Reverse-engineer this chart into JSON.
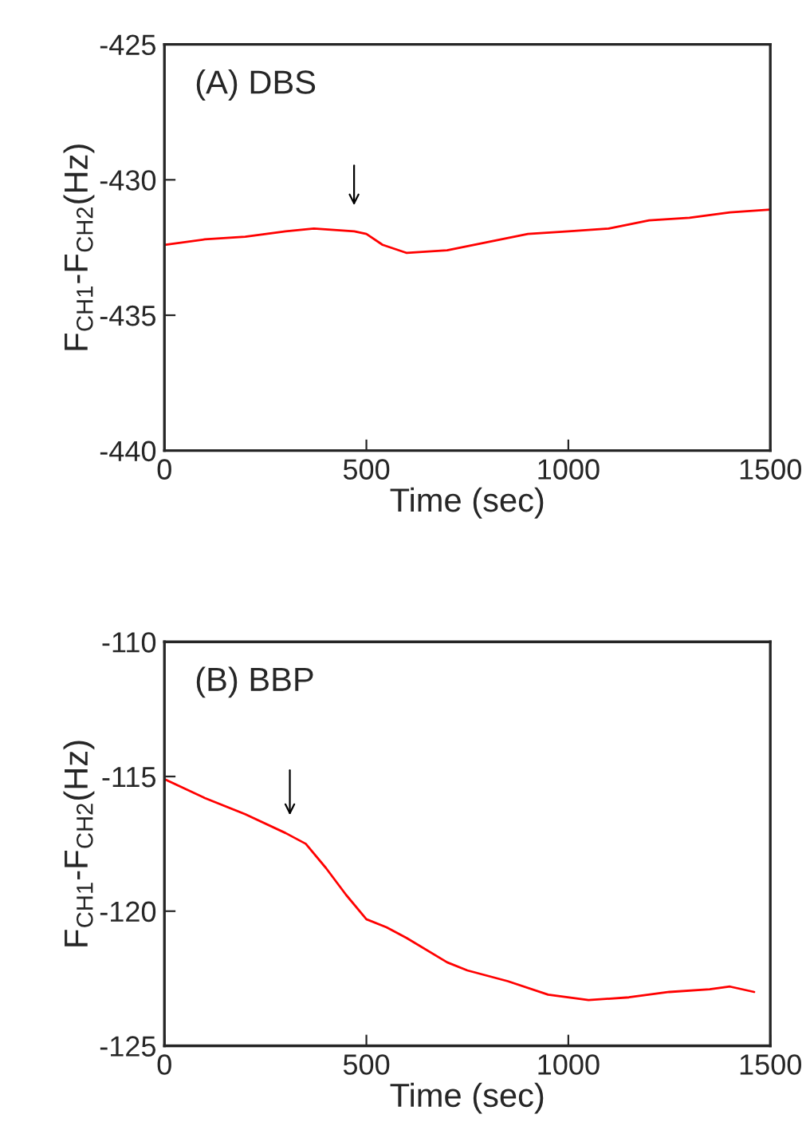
{
  "chart_data": [
    {
      "type": "line",
      "xlabel": "Time (sec)",
      "ylabel": "F$_{CH1}$-F$_{CH2}$(Hz)",
      "xlim": [
        0,
        1500
      ],
      "xticks": [
        0,
        500,
        1000,
        1500
      ],
      "ylim": [
        -440,
        -425
      ],
      "yticks": [
        -440,
        -435,
        -430,
        -425
      ],
      "grid": false,
      "legend": false,
      "marker": "none",
      "line_style": "solid",
      "x": [
        0,
        100,
        200,
        300,
        370,
        470,
        500,
        540,
        600,
        700,
        800,
        900,
        1000,
        1100,
        1200,
        1300,
        1400,
        1500
      ],
      "series": [
        {
          "color": "#ff0000",
          "values": [
            -432.4,
            -432.2,
            -432.1,
            -431.9,
            -431.8,
            -431.9,
            -432.0,
            -432.4,
            -432.7,
            -432.6,
            -432.3,
            -432.0,
            -431.9,
            -431.8,
            -431.5,
            -431.4,
            -431.2,
            -431.1
          ]
        }
      ],
      "annotations": [
        "(A) DBS"
      ]
    },
    {
      "type": "line",
      "xlabel": "Time (sec)",
      "ylabel": "F$_{CH1}$-F$_{CH2}$(Hz)",
      "xlim": [
        0,
        1500
      ],
      "xticks": [
        0,
        500,
        1000,
        1500
      ],
      "ylim": [
        -125,
        -110
      ],
      "yticks": [
        -125,
        -120,
        -115,
        -110
      ],
      "grid": false,
      "legend": false,
      "marker": "none",
      "line_style": "solid",
      "x": [
        0,
        100,
        200,
        300,
        350,
        400,
        450,
        500,
        550,
        600,
        700,
        750,
        850,
        950,
        1050,
        1150,
        1250,
        1350,
        1400,
        1460
      ],
      "series": [
        {
          "color": "#ff0000",
          "values": [
            -115.1,
            -115.8,
            -116.4,
            -117.1,
            -117.5,
            -118.4,
            -119.4,
            -120.3,
            -120.6,
            -121.0,
            -121.9,
            -122.2,
            -122.6,
            -123.1,
            -123.3,
            -123.2,
            -123.0,
            -122.9,
            -122.8,
            -123.0
          ]
        }
      ],
      "annotations": [
        "(B) BBP"
      ]
    }
  ]
}
